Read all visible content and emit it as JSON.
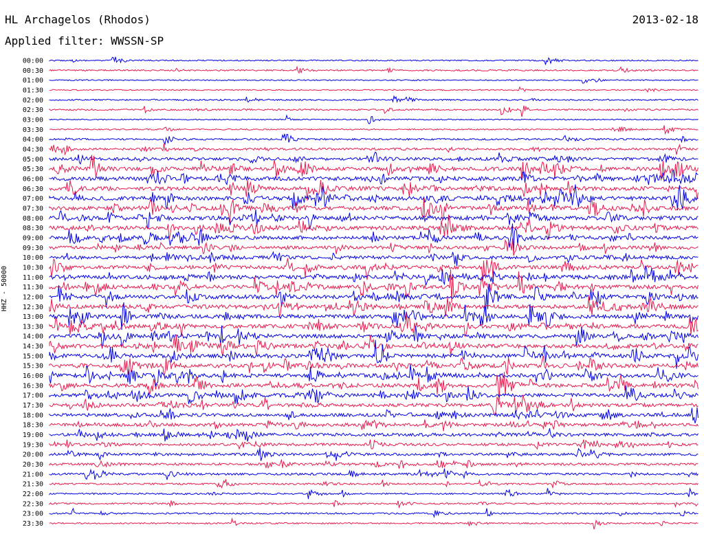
{
  "header": {
    "station": "HL Archagelos (Rhodos)",
    "date": "2013-02-18",
    "filter": "Applied filter: WWSSN-SP"
  },
  "colors": {
    "trace_a": "#0000e6",
    "trace_b": "#e6194b"
  },
  "chart_data": {
    "type": "line",
    "title": "HL Archagelos (Rhodos)",
    "subtitle": "Applied filter: WWSSN-SP",
    "ylabel": "HHZ - 50000",
    "xlabel": "",
    "row_labels": [
      "00:00",
      "00:30",
      "01:00",
      "01:30",
      "02:00",
      "02:30",
      "03:00",
      "03:30",
      "04:00",
      "04:30",
      "05:00",
      "05:30",
      "06:00",
      "06:30",
      "07:00",
      "07:30",
      "08:00",
      "08:30",
      "09:00",
      "09:30",
      "10:00",
      "10:30",
      "11:00",
      "11:30",
      "12:00",
      "12:30",
      "13:00",
      "13:30",
      "14:00",
      "14:30",
      "15:00",
      "15:30",
      "16:00",
      "16:30",
      "17:00",
      "17:30",
      "18:00",
      "18:30",
      "19:00",
      "19:30",
      "20:00",
      "20:30",
      "21:00",
      "21:30",
      "22:00",
      "22:30",
      "23:00",
      "23:30"
    ],
    "activity": [
      0.15,
      0.2,
      0.1,
      0.1,
      0.2,
      0.25,
      0.1,
      0.15,
      0.3,
      0.45,
      0.7,
      0.9,
      1.0,
      1.0,
      1.0,
      1.0,
      1.0,
      1.0,
      0.9,
      0.8,
      0.8,
      0.85,
      1.0,
      1.0,
      1.0,
      1.0,
      1.0,
      1.0,
      1.0,
      1.0,
      1.0,
      1.0,
      1.0,
      1.0,
      0.95,
      0.85,
      0.8,
      0.75,
      0.7,
      0.6,
      0.55,
      0.5,
      0.45,
      0.3,
      0.25,
      0.25,
      0.25,
      0.2
    ],
    "grid": false,
    "legend": "none"
  }
}
